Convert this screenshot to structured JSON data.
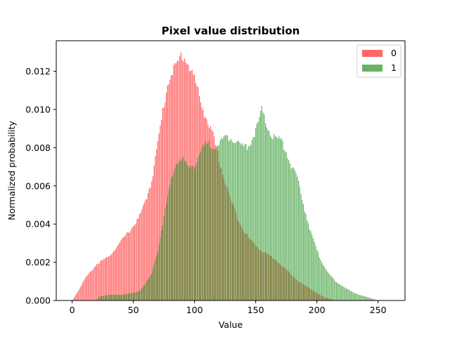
{
  "chart_data": {
    "type": "bar",
    "title": "Pixel value distribution",
    "xlabel": "Value",
    "ylabel": "Normalized probability",
    "xlim": [
      -13,
      272
    ],
    "ylim": [
      0,
      0.0136
    ],
    "xticks": [
      0,
      50,
      100,
      150,
      200,
      250
    ],
    "yticks": [
      0.0,
      0.002,
      0.004,
      0.006,
      0.008,
      0.01,
      0.012
    ],
    "ytick_labels": [
      "0.000",
      "0.002",
      "0.004",
      "0.006",
      "0.008",
      "0.010",
      "0.012"
    ],
    "grid": false,
    "legend_position": "top-right",
    "bins": "0..255 (step 1)",
    "series": [
      {
        "name": "0",
        "color": "#ff0000",
        "opacity": 0.6,
        "anchors": [
          [
            0,
            0.0
          ],
          [
            5,
            0.0005
          ],
          [
            10,
            0.0011
          ],
          [
            15,
            0.0015
          ],
          [
            20,
            0.0019
          ],
          [
            25,
            0.0021
          ],
          [
            30,
            0.0023
          ],
          [
            35,
            0.0027
          ],
          [
            40,
            0.0031
          ],
          [
            45,
            0.0035
          ],
          [
            50,
            0.0039
          ],
          [
            55,
            0.0044
          ],
          [
            60,
            0.0052
          ],
          [
            65,
            0.0063
          ],
          [
            70,
            0.0082
          ],
          [
            75,
            0.0103
          ],
          [
            80,
            0.0119
          ],
          [
            85,
            0.0122
          ],
          [
            90,
            0.0129
          ],
          [
            95,
            0.0124
          ],
          [
            100,
            0.0116
          ],
          [
            105,
            0.0104
          ],
          [
            110,
            0.0095
          ],
          [
            115,
            0.0086
          ],
          [
            120,
            0.0074
          ],
          [
            125,
            0.0062
          ],
          [
            130,
            0.0052
          ],
          [
            135,
            0.0044
          ],
          [
            140,
            0.0037
          ],
          [
            145,
            0.0032
          ],
          [
            150,
            0.0029
          ],
          [
            155,
            0.0026
          ],
          [
            160,
            0.0024
          ],
          [
            165,
            0.0022
          ],
          [
            170,
            0.0019
          ],
          [
            175,
            0.0016
          ],
          [
            180,
            0.0013
          ],
          [
            185,
            0.001
          ],
          [
            190,
            0.0008
          ],
          [
            195,
            0.0006
          ],
          [
            200,
            0.0004
          ],
          [
            205,
            0.0002
          ],
          [
            210,
            0.0001
          ],
          [
            215,
            0.0
          ],
          [
            255,
            0.0
          ]
        ]
      },
      {
        "name": "1",
        "color": "#008000",
        "opacity": 0.6,
        "anchors": [
          [
            0,
            0.0
          ],
          [
            20,
            0.0
          ],
          [
            22,
            0.0002
          ],
          [
            30,
            0.0003
          ],
          [
            40,
            0.0003
          ],
          [
            50,
            0.0004
          ],
          [
            55,
            0.0005
          ],
          [
            60,
            0.0009
          ],
          [
            65,
            0.0014
          ],
          [
            70,
            0.0026
          ],
          [
            75,
            0.0044
          ],
          [
            80,
            0.006
          ],
          [
            85,
            0.0072
          ],
          [
            90,
            0.0075
          ],
          [
            95,
            0.0069
          ],
          [
            100,
            0.0071
          ],
          [
            105,
            0.0078
          ],
          [
            110,
            0.0082
          ],
          [
            115,
            0.0081
          ],
          [
            120,
            0.0082
          ],
          [
            125,
            0.0085
          ],
          [
            130,
            0.0086
          ],
          [
            135,
            0.0083
          ],
          [
            140,
            0.008
          ],
          [
            145,
            0.0082
          ],
          [
            150,
            0.0089
          ],
          [
            155,
            0.0099
          ],
          [
            160,
            0.009
          ],
          [
            165,
            0.0085
          ],
          [
            170,
            0.0084
          ],
          [
            175,
            0.0078
          ],
          [
            180,
            0.0069
          ],
          [
            185,
            0.0062
          ],
          [
            190,
            0.0048
          ],
          [
            195,
            0.0036
          ],
          [
            200,
            0.0026
          ],
          [
            205,
            0.0019
          ],
          [
            210,
            0.0014
          ],
          [
            215,
            0.001
          ],
          [
            220,
            0.0008
          ],
          [
            225,
            0.0006
          ],
          [
            230,
            0.0004
          ],
          [
            235,
            0.0003
          ],
          [
            240,
            0.0002
          ],
          [
            245,
            0.0001
          ],
          [
            250,
            0.0
          ],
          [
            255,
            0.0
          ]
        ]
      }
    ]
  }
}
